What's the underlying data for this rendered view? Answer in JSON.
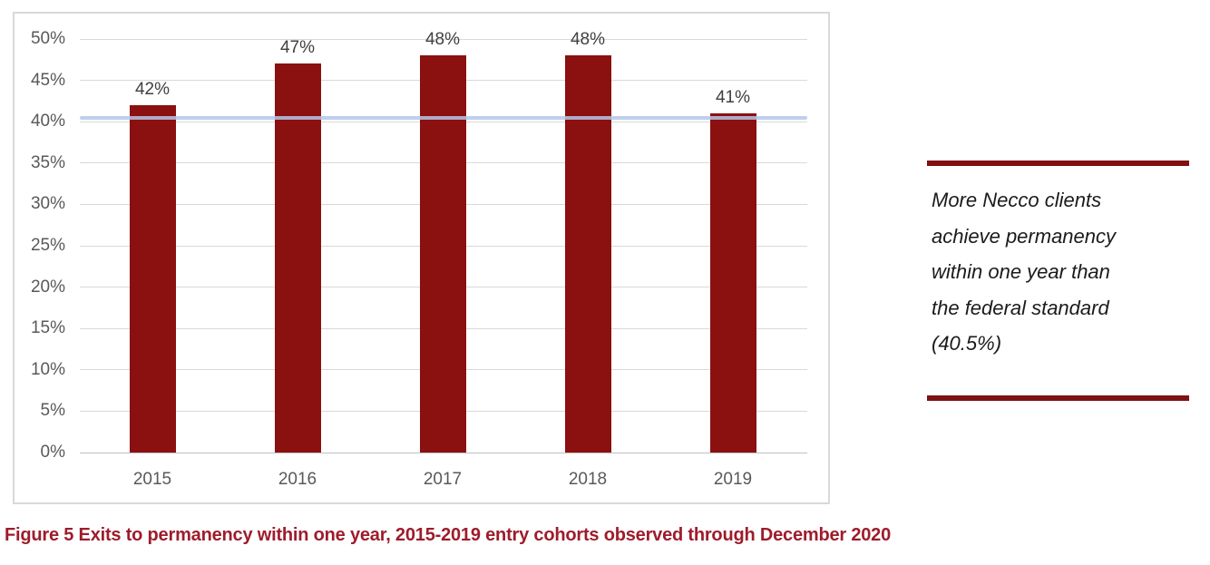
{
  "chart_data": {
    "type": "bar",
    "title": "",
    "xlabel": "",
    "ylabel": "",
    "categories": [
      "2015",
      "2016",
      "2017",
      "2018",
      "2019"
    ],
    "values": [
      42,
      47,
      48,
      48,
      41
    ],
    "data_labels": [
      "42%",
      "47%",
      "48%",
      "48%",
      "41%"
    ],
    "yticks": [
      0,
      5,
      10,
      15,
      20,
      25,
      30,
      35,
      40,
      45,
      50
    ],
    "ytick_labels": [
      "0%",
      "5%",
      "10%",
      "15%",
      "20%",
      "25%",
      "30%",
      "35%",
      "40%",
      "45%",
      "50%"
    ],
    "ylim": [
      0,
      50
    ],
    "grid": "horizontal-only",
    "legend_position": "none",
    "bar_color": "#8b1010",
    "reference_line": {
      "value": 40.5,
      "color": "#b4c7e7"
    }
  },
  "callout": {
    "lines": [
      "More Necco clients",
      "achieve permanency",
      "within one year than",
      "the federal standard",
      "(40.5%)"
    ],
    "rule_color": "#7f1113"
  },
  "caption": {
    "text": "Figure 5 Exits to permanency within one year, 2015-2019 entry cohorts observed through December 2020",
    "color": "#9e1c2b"
  }
}
